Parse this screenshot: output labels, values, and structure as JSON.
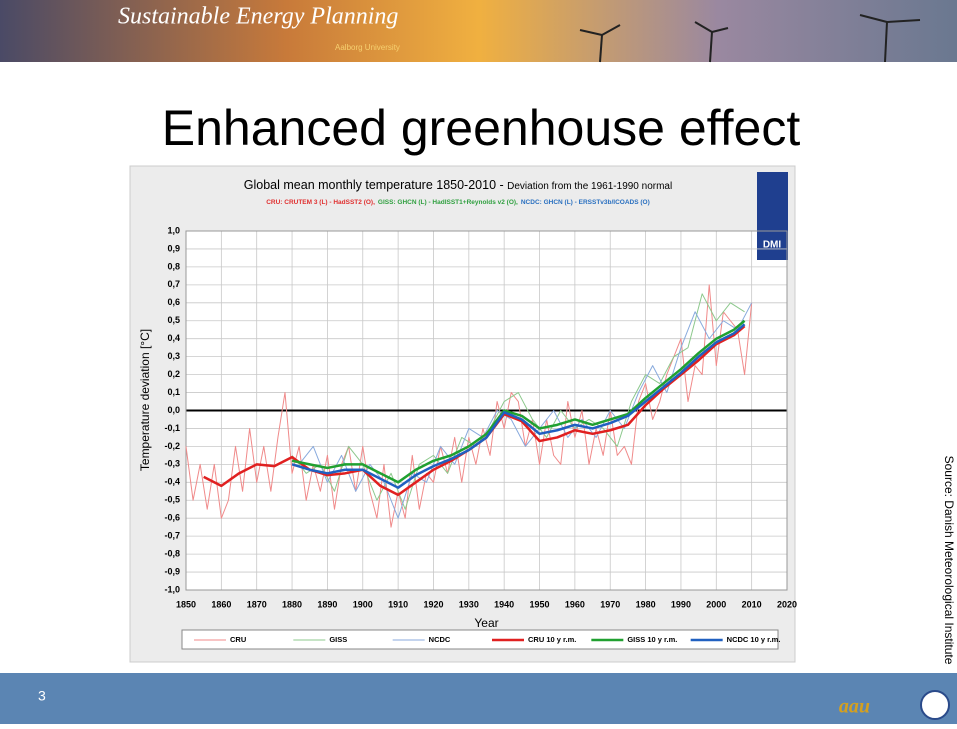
{
  "slide": {
    "header": "Sustainable Energy Planning",
    "university": "Aalborg University",
    "heading": "Enhanced greenhouse effect",
    "source": "Source: Danish Meteorological Institute",
    "page_number": "3",
    "logo": "aau",
    "chart_logo": "DMI"
  },
  "chart_data": {
    "type": "line",
    "title": "Global mean monthly temperature 1850-2010 - ",
    "title_suffix": "Deviation from the 1961-1990 normal",
    "subtitle": [
      {
        "text": "CRU: CRUTEM 3 (L) - HadSST2 (O),",
        "color": "#e03030"
      },
      {
        "text": "GISS: GHCN (L) - HadISST1+Reynolds v2 (O),",
        "color": "#30a040"
      },
      {
        "text": "NCDC: GHCN (L) - ERSSTv3b/ICOADS (O)",
        "color": "#2a70c0"
      }
    ],
    "xlabel": "Year",
    "ylabel": "Temperature deviation [°C]",
    "xlim": [
      1850,
      2020
    ],
    "ylim": [
      -1,
      1
    ],
    "xticks": [
      1850,
      1860,
      1870,
      1880,
      1890,
      1900,
      1910,
      1920,
      1930,
      1940,
      1950,
      1960,
      1970,
      1980,
      1990,
      2000,
      2010,
      2020
    ],
    "yticks": [
      {
        "value": 1,
        "label": "1,0"
      },
      {
        "value": 0.9,
        "label": "0,9"
      },
      {
        "value": 0.8,
        "label": "0,8"
      },
      {
        "value": 0.7,
        "label": "0,7"
      },
      {
        "value": 0.6,
        "label": "0,6"
      },
      {
        "value": 0.5,
        "label": "0,5"
      },
      {
        "value": 0.4,
        "label": "0,4"
      },
      {
        "value": 0.3,
        "label": "0,3"
      },
      {
        "value": 0.2,
        "label": "0,2"
      },
      {
        "value": 0.1,
        "label": "0,1"
      },
      {
        "value": 0,
        "label": "0,0"
      },
      {
        "value": -0.1,
        "label": "-0,1"
      },
      {
        "value": -0.2,
        "label": "-0,2"
      },
      {
        "value": -0.3,
        "label": "-0,3"
      },
      {
        "value": -0.4,
        "label": "-0,4"
      },
      {
        "value": -0.5,
        "label": "-0,5"
      },
      {
        "value": -0.6,
        "label": "-0,6"
      },
      {
        "value": -0.7,
        "label": "-0,7"
      },
      {
        "value": -0.8,
        "label": "-0,8"
      },
      {
        "value": -0.9,
        "label": "-0,9"
      },
      {
        "value": -1,
        "label": "-1,0"
      }
    ],
    "grid": true,
    "series": [
      {
        "name": "CRU",
        "color": "#f08a8a",
        "width": 1,
        "x": [
          1850,
          1852,
          1854,
          1856,
          1858,
          1860,
          1862,
          1864,
          1866,
          1868,
          1870,
          1872,
          1874,
          1876,
          1878,
          1880,
          1882,
          1884,
          1886,
          1888,
          1890,
          1892,
          1894,
          1896,
          1898,
          1900,
          1902,
          1904,
          1906,
          1908,
          1910,
          1912,
          1914,
          1916,
          1918,
          1920,
          1922,
          1924,
          1926,
          1928,
          1930,
          1932,
          1934,
          1936,
          1938,
          1940,
          1942,
          1944,
          1946,
          1948,
          1950,
          1952,
          1954,
          1956,
          1958,
          1960,
          1962,
          1964,
          1966,
          1968,
          1970,
          1972,
          1974,
          1976,
          1978,
          1980,
          1982,
          1984,
          1986,
          1988,
          1990,
          1992,
          1994,
          1996,
          1998,
          2000,
          2002,
          2004,
          2006,
          2008,
          2010
        ],
        "values": [
          -0.2,
          -0.5,
          -0.3,
          -0.55,
          -0.3,
          -0.6,
          -0.5,
          -0.2,
          -0.45,
          -0.1,
          -0.4,
          -0.2,
          -0.45,
          -0.15,
          0.1,
          -0.35,
          -0.2,
          -0.5,
          -0.3,
          -0.45,
          -0.25,
          -0.55,
          -0.3,
          -0.2,
          -0.45,
          -0.2,
          -0.45,
          -0.6,
          -0.3,
          -0.65,
          -0.45,
          -0.6,
          -0.25,
          -0.55,
          -0.35,
          -0.4,
          -0.2,
          -0.35,
          -0.15,
          -0.4,
          -0.15,
          -0.3,
          -0.1,
          -0.25,
          0.05,
          -0.1,
          0.1,
          0.05,
          -0.2,
          -0.05,
          -0.3,
          -0.05,
          -0.25,
          -0.3,
          0.05,
          -0.15,
          0.0,
          -0.3,
          -0.1,
          -0.25,
          0.0,
          -0.25,
          -0.2,
          -0.3,
          0.05,
          0.15,
          -0.05,
          0.05,
          0.2,
          0.3,
          0.4,
          0.05,
          0.25,
          0.2,
          0.7,
          0.25,
          0.55,
          0.5,
          0.45,
          0.2,
          0.6
        ]
      },
      {
        "name": "GISS",
        "color": "#8cc88c",
        "width": 1,
        "x": [
          1880,
          1884,
          1888,
          1892,
          1896,
          1900,
          1904,
          1908,
          1912,
          1916,
          1920,
          1924,
          1928,
          1932,
          1936,
          1940,
          1944,
          1948,
          1952,
          1956,
          1960,
          1964,
          1968,
          1972,
          1976,
          1980,
          1984,
          1988,
          1992,
          1996,
          2000,
          2004,
          2008
        ],
        "values": [
          -0.25,
          -0.35,
          -0.3,
          -0.45,
          -0.2,
          -0.3,
          -0.5,
          -0.35,
          -0.55,
          -0.3,
          -0.25,
          -0.35,
          -0.15,
          -0.2,
          -0.1,
          0.05,
          0.1,
          -0.05,
          -0.15,
          0.0,
          -0.1,
          -0.05,
          -0.1,
          -0.2,
          0.05,
          0.2,
          0.15,
          0.3,
          0.35,
          0.65,
          0.5,
          0.6,
          0.55
        ]
      },
      {
        "name": "NCDC",
        "color": "#88aadd",
        "width": 1,
        "x": [
          1882,
          1886,
          1890,
          1894,
          1898,
          1902,
          1906,
          1910,
          1914,
          1918,
          1922,
          1926,
          1930,
          1934,
          1938,
          1942,
          1946,
          1950,
          1954,
          1958,
          1962,
          1966,
          1970,
          1974,
          1978,
          1982,
          1986,
          1990,
          1994,
          1998,
          2002,
          2006,
          2010
        ],
        "values": [
          -0.3,
          -0.2,
          -0.4,
          -0.25,
          -0.45,
          -0.3,
          -0.4,
          -0.6,
          -0.35,
          -0.4,
          -0.2,
          -0.3,
          -0.1,
          -0.15,
          0.0,
          -0.05,
          -0.2,
          -0.1,
          0.0,
          -0.15,
          -0.05,
          -0.15,
          0.0,
          -0.1,
          0.1,
          0.25,
          0.1,
          0.35,
          0.55,
          0.4,
          0.5,
          0.45,
          0.6
        ]
      },
      {
        "name": "CRU 10 y r.m.",
        "color": "#e02020",
        "width": 2.5,
        "x": [
          1855,
          1860,
          1865,
          1870,
          1875,
          1880,
          1885,
          1890,
          1895,
          1900,
          1905,
          1910,
          1915,
          1920,
          1925,
          1930,
          1935,
          1940,
          1945,
          1950,
          1955,
          1960,
          1965,
          1970,
          1975,
          1980,
          1985,
          1990,
          1995,
          2000,
          2005,
          2008
        ],
        "values": [
          -0.37,
          -0.42,
          -0.35,
          -0.3,
          -0.31,
          -0.26,
          -0.33,
          -0.36,
          -0.35,
          -0.33,
          -0.42,
          -0.47,
          -0.4,
          -0.33,
          -0.28,
          -0.22,
          -0.15,
          -0.02,
          -0.06,
          -0.17,
          -0.15,
          -0.11,
          -0.13,
          -0.11,
          -0.08,
          0.03,
          0.12,
          0.2,
          0.28,
          0.37,
          0.42,
          0.47
        ]
      },
      {
        "name": "GISS 10 y r.m.",
        "color": "#20a030",
        "width": 2.5,
        "x": [
          1880,
          1885,
          1890,
          1895,
          1900,
          1905,
          1910,
          1915,
          1920,
          1925,
          1930,
          1935,
          1940,
          1945,
          1950,
          1955,
          1960,
          1965,
          1970,
          1975,
          1980,
          1985,
          1990,
          1995,
          2000,
          2005,
          2008
        ],
        "values": [
          -0.28,
          -0.3,
          -0.32,
          -0.3,
          -0.3,
          -0.35,
          -0.4,
          -0.33,
          -0.28,
          -0.25,
          -0.2,
          -0.13,
          0.0,
          -0.03,
          -0.1,
          -0.08,
          -0.05,
          -0.08,
          -0.05,
          -0.02,
          0.07,
          0.15,
          0.23,
          0.32,
          0.4,
          0.45,
          0.5
        ]
      },
      {
        "name": "NCDC 10 y r.m.",
        "color": "#2060c0",
        "width": 2.5,
        "x": [
          1880,
          1885,
          1890,
          1895,
          1900,
          1905,
          1910,
          1915,
          1920,
          1925,
          1930,
          1935,
          1940,
          1945,
          1950,
          1955,
          1960,
          1965,
          1970,
          1975,
          1980,
          1985,
          1990,
          1995,
          2000,
          2005,
          2008
        ],
        "values": [
          -0.3,
          -0.33,
          -0.35,
          -0.33,
          -0.33,
          -0.38,
          -0.43,
          -0.36,
          -0.31,
          -0.27,
          -0.22,
          -0.15,
          -0.01,
          -0.05,
          -0.13,
          -0.11,
          -0.08,
          -0.1,
          -0.07,
          -0.03,
          0.05,
          0.13,
          0.21,
          0.3,
          0.38,
          0.43,
          0.48
        ]
      }
    ]
  }
}
